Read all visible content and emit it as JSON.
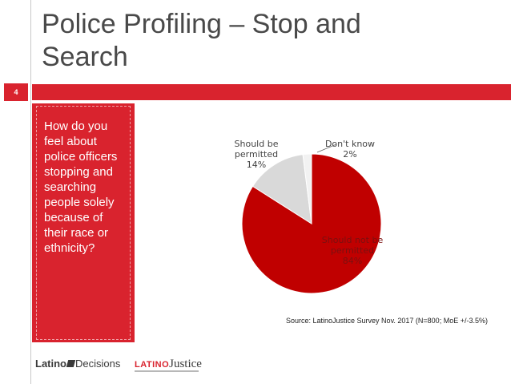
{
  "slide": {
    "title_line1": "Police Profiling – Stop and",
    "title_line2": "Search",
    "number": "4",
    "accent_color": "#d9232e"
  },
  "question": "How do you feel about police officers stopping and searching people solely because of their race or ethnicity?",
  "source": "Source: LatinoJustice Survey Nov. 2017 (N=800; MoE +/-3.5%)",
  "logos": {
    "latino_decisions_a": "Latino",
    "latino_decisions_b": "Decisions",
    "latinojustice_a": "LATINO",
    "latinojustice_b": "Justice"
  },
  "chart_data": {
    "type": "pie",
    "slices": [
      {
        "label_line1": "Should not be",
        "label_line2": "permitted",
        "pct_text": "84%",
        "value": 84,
        "color": "#c00000"
      },
      {
        "label_line1": "Should be",
        "label_line2": "permitted",
        "pct_text": "14%",
        "value": 14,
        "color": "#d9d9d9"
      },
      {
        "label_line1": "Don't know",
        "label_line2": "",
        "pct_text": "2%",
        "value": 2,
        "color": "#f2f2f2"
      }
    ]
  }
}
